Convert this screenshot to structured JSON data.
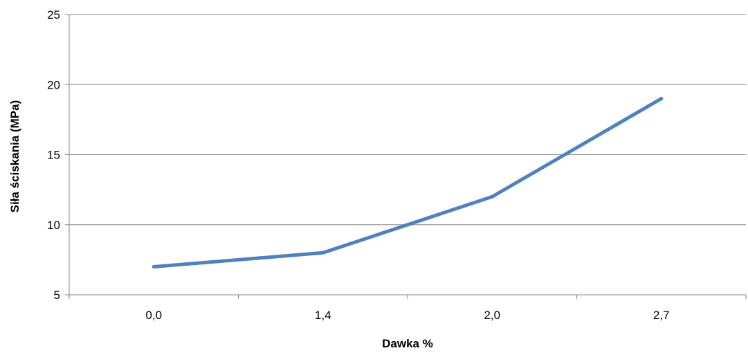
{
  "chart_data": {
    "type": "line",
    "title": "",
    "xlabel": "Dawka %",
    "ylabel": "Siła ściskania (MPa)",
    "categories": [
      "0,0",
      "1,4",
      "2,0",
      "2,7"
    ],
    "series": [
      {
        "values": [
          7,
          8,
          12,
          19
        ],
        "color": "#4F81BD"
      }
    ],
    "ylim": [
      5,
      25
    ],
    "yticks": [
      5,
      10,
      15,
      20,
      25
    ],
    "grid": true,
    "legend": "none"
  },
  "colors": {
    "series": "#4F81BD",
    "grid": "#868686",
    "axis": "#868686"
  }
}
